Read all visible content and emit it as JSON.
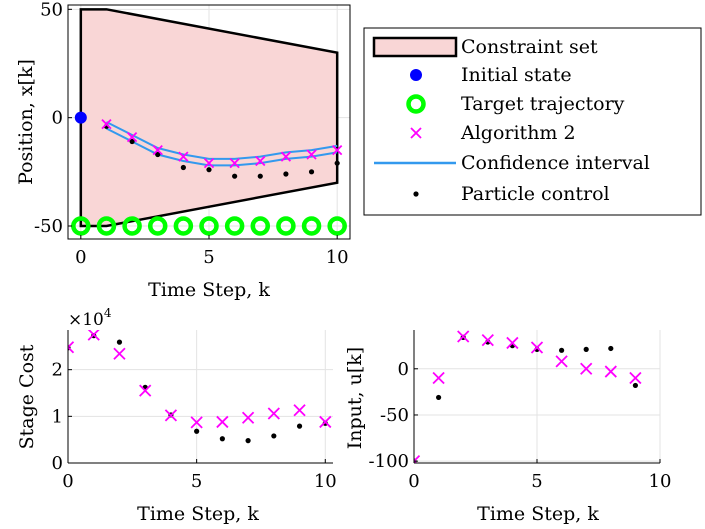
{
  "legend": {
    "entries": [
      {
        "key": "constraint",
        "label": "Constraint set",
        "color": "#f9d6d6"
      },
      {
        "key": "initial",
        "label": "Initial state",
        "color": "#0000ff"
      },
      {
        "key": "target",
        "label": "Target trajectory",
        "color": "#00ff00"
      },
      {
        "key": "alg2",
        "label": "Algorithm 2",
        "color": "#ff00ff"
      },
      {
        "key": "ci",
        "label": "Confidence interval",
        "color": "#3399ee"
      },
      {
        "key": "particle",
        "label": "Particle control",
        "color": "#000000"
      }
    ]
  },
  "chart_data": [
    {
      "type": "line",
      "xlabel": "Time Step, k",
      "ylabel": "Position, x[k]",
      "xlim": [
        -0.5,
        10.5
      ],
      "ylim": [
        -56,
        52
      ],
      "xticks": [
        0,
        5,
        10
      ],
      "yticks": [
        -50,
        0,
        50
      ],
      "grid": true,
      "constraint_polygon": [
        [
          0,
          50
        ],
        [
          1,
          50
        ],
        [
          10,
          30
        ],
        [
          10,
          -30
        ],
        [
          1,
          -50
        ],
        [
          0,
          -50
        ]
      ],
      "initial_state": {
        "x": 0,
        "y": 0
      },
      "target": {
        "x": [
          0,
          1,
          2,
          3,
          4,
          5,
          6,
          7,
          8,
          9,
          10
        ],
        "y": [
          -50,
          -50,
          -50,
          -50,
          -50,
          -50,
          -50,
          -50,
          -50,
          -50,
          -50
        ]
      },
      "algorithm2": {
        "x": [
          1,
          2,
          3,
          4,
          5,
          6,
          7,
          8,
          9,
          10
        ],
        "y": [
          -3,
          -9,
          -15,
          -18,
          -21,
          -21,
          -20,
          -18,
          -17,
          -15
        ]
      },
      "ci_upper": {
        "x": [
          1,
          2,
          3,
          4,
          5,
          6,
          7,
          8,
          9,
          10
        ],
        "y": [
          -2,
          -8,
          -14,
          -17,
          -19,
          -19,
          -18,
          -16,
          -15,
          -13
        ]
      },
      "ci_lower": {
        "x": [
          1,
          2,
          3,
          4,
          5,
          6,
          7,
          8,
          9,
          10
        ],
        "y": [
          -5,
          -11,
          -17,
          -20,
          -22,
          -22,
          -21,
          -19,
          -18,
          -16
        ]
      },
      "particle": {
        "x": [
          1,
          2,
          3,
          4,
          5,
          6,
          7,
          8,
          9,
          10
        ],
        "y": [
          -4,
          -11,
          -17,
          -23,
          -24,
          -27,
          -27,
          -26,
          -25,
          -21
        ]
      }
    },
    {
      "type": "scatter",
      "xlabel": "Time Step, k",
      "ylabel": "Stage Cost",
      "exponent_label": "×10",
      "exponent_power": "4",
      "xlim": [
        0,
        10.3
      ],
      "ylim": [
        0,
        2.85
      ],
      "xticks": [
        0,
        5,
        10
      ],
      "yticks": [
        0,
        1,
        2
      ],
      "grid": true,
      "algorithm2": {
        "x": [
          0,
          1,
          2,
          3,
          4,
          5,
          6,
          7,
          8,
          9,
          10
        ],
        "y": [
          2.48,
          2.75,
          2.34,
          1.55,
          1.02,
          0.87,
          0.88,
          0.97,
          1.06,
          1.13,
          0.88
        ]
      },
      "particle": {
        "x": [
          0,
          1,
          2,
          3,
          4,
          5,
          6,
          7,
          8,
          9,
          10
        ],
        "y": [
          2.47,
          2.73,
          2.59,
          1.62,
          1.03,
          0.68,
          0.52,
          0.48,
          0.58,
          0.79,
          0.85
        ]
      }
    },
    {
      "type": "scatter",
      "xlabel": "Time Step, k",
      "ylabel": "Input, u[k]",
      "xlim": [
        0,
        10
      ],
      "ylim": [
        -102,
        42
      ],
      "xticks": [
        0,
        5,
        10
      ],
      "yticks": [
        -100,
        -50,
        0
      ],
      "grid": true,
      "algorithm2": {
        "x": [
          0,
          1,
          2,
          3,
          4,
          5,
          6,
          7,
          8,
          9
        ],
        "y": [
          -100,
          -10,
          35,
          31,
          28,
          23,
          8,
          0,
          -3,
          -10
        ]
      },
      "particle": {
        "x": [
          0,
          1,
          2,
          3,
          4,
          5,
          6,
          7,
          8,
          9
        ],
        "y": [
          -100,
          -31,
          34,
          29,
          25,
          21,
          20,
          21,
          22,
          -18
        ]
      }
    }
  ]
}
